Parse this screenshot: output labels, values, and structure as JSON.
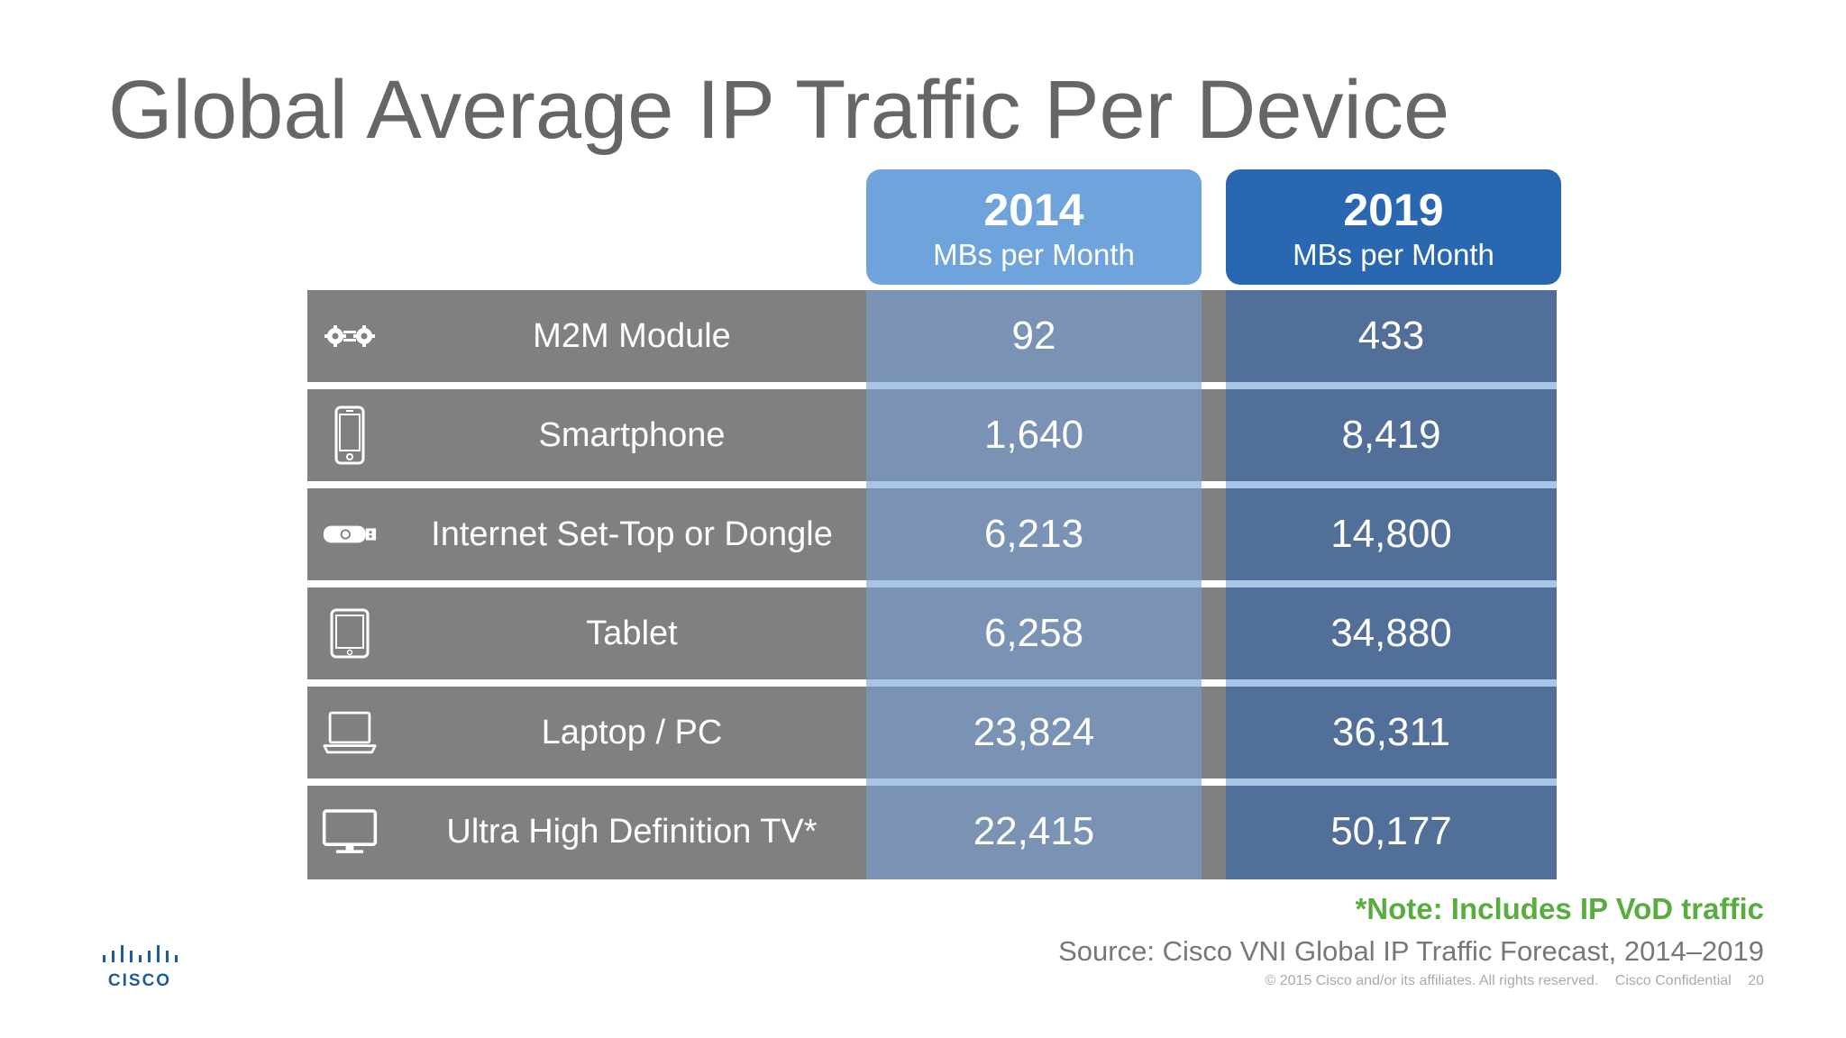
{
  "title": "Global Average IP Traffic Per Device",
  "columns": [
    {
      "year": "2014",
      "unit": "MBs per Month"
    },
    {
      "year": "2019",
      "unit": "MBs per Month"
    }
  ],
  "rows": [
    {
      "icon": "m2m-gears-icon",
      "label": "M2M Module",
      "v2014": "92",
      "v2019": "433"
    },
    {
      "icon": "smartphone-icon",
      "label": "Smartphone",
      "v2014": "1,640",
      "v2019": "8,419"
    },
    {
      "icon": "dongle-icon",
      "label": "Internet Set-Top or Dongle",
      "v2014": "6,213",
      "v2019": "14,800"
    },
    {
      "icon": "tablet-icon",
      "label": "Tablet",
      "v2014": "6,258",
      "v2019": "34,880"
    },
    {
      "icon": "laptop-icon",
      "label": "Laptop / PC",
      "v2014": "23,824",
      "v2019": "36,311"
    },
    {
      "icon": "tv-icon",
      "label": "Ultra High Definition TV*",
      "v2014": "22,415",
      "v2019": "50,177"
    }
  ],
  "note": "*Note: Includes IP VoD traffic",
  "source": "Source: Cisco VNI Global IP Traffic Forecast, 2014–2019",
  "footer": {
    "copyright": "© 2015  Cisco and/or its affiliates. All rights reserved.",
    "confidential": "Cisco Confidential",
    "page": "20"
  },
  "logo_text": "CISCO",
  "colors": {
    "header_2014": "#6fa3dc",
    "header_2019": "#2a67b1",
    "row_gray": "#808080",
    "cell_2014": "#7a93b4",
    "cell_2019": "#516f98",
    "note_green": "#58ad3f",
    "cisco_blue": "#1b5c9e"
  }
}
